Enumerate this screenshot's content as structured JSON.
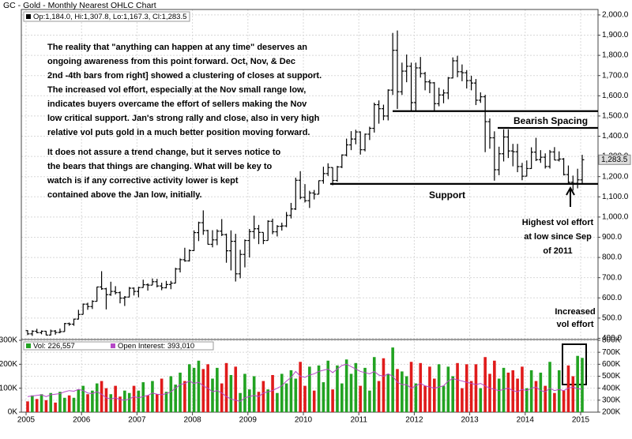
{
  "chart_data": {
    "type": "ohlc",
    "title": "GC - Gold - Monthly Nearest OHLC Chart",
    "header": "Op:1,184.0, Hi:1,307.8, Lo:1,167.3, Cl:1,283.5",
    "last_label": "1,283.5",
    "grid": true,
    "bar_color": "#000000",
    "up_color": "#22a322",
    "down_color": "#e01b1b",
    "categories": [
      "2005",
      null,
      null,
      null,
      null,
      null,
      null,
      null,
      null,
      null,
      null,
      null,
      "2006",
      null,
      null,
      null,
      null,
      null,
      null,
      null,
      null,
      null,
      null,
      null,
      "2007",
      null,
      null,
      null,
      null,
      null,
      null,
      null,
      null,
      null,
      null,
      null,
      "2008",
      null,
      null,
      null,
      null,
      null,
      null,
      null,
      null,
      null,
      null,
      null,
      "2009",
      null,
      null,
      null,
      null,
      null,
      null,
      null,
      null,
      null,
      null,
      null,
      "2010",
      null,
      null,
      null,
      null,
      null,
      null,
      null,
      null,
      null,
      null,
      null,
      "2011",
      null,
      null,
      null,
      null,
      null,
      null,
      null,
      null,
      null,
      null,
      null,
      "2012",
      null,
      null,
      null,
      null,
      null,
      null,
      null,
      null,
      null,
      null,
      null,
      "2013",
      null,
      null,
      null,
      null,
      null,
      null,
      null,
      null,
      null,
      null,
      null,
      "2014",
      null,
      null,
      null,
      null,
      null,
      null,
      null,
      null,
      null,
      null,
      null,
      "2015"
    ],
    "open": [
      438,
      422,
      435,
      428,
      435,
      416,
      436,
      429,
      433,
      473,
      470,
      495,
      518,
      569,
      557,
      583,
      654,
      645,
      616,
      632,
      626,
      599,
      604,
      648,
      632,
      651,
      665,
      663,
      680,
      659,
      650,
      666,
      673,
      743,
      789,
      783,
      834,
      923,
      972,
      933,
      865,
      887,
      930,
      913,
      833,
      880,
      719,
      815,
      884,
      928,
      942,
      924,
      884,
      979,
      927,
      954,
      956,
      1008,
      1040,
      1182,
      1097,
      1081,
      1119,
      1113,
      1180,
      1215,
      1245,
      1181,
      1248,
      1307,
      1357,
      1386,
      1421,
      1333,
      1410,
      1439,
      1556,
      1536,
      1500,
      1628,
      1825,
      1620,
      1722,
      1746,
      1566,
      1738,
      1710,
      1669,
      1664,
      1561,
      1604,
      1614,
      1688,
      1773,
      1719,
      1714,
      1675,
      1663,
      1578,
      1595,
      1472,
      1392,
      1234,
      1313,
      1396,
      1327,
      1323,
      1250,
      1202,
      1240,
      1321,
      1284,
      1296,
      1250,
      1322,
      1282,
      1287,
      1210,
      1172,
      1167,
      1184
    ],
    "high": [
      440,
      440,
      447,
      439,
      436,
      443,
      441,
      448,
      476,
      478,
      497,
      541,
      572,
      576,
      588,
      655,
      732,
      650,
      680,
      658,
      632,
      609,
      654,
      652,
      655,
      690,
      672,
      696,
      694,
      675,
      684,
      684,
      749,
      795,
      848,
      840,
      934,
      977,
      1033,
      937,
      935,
      939,
      990,
      918,
      934,
      917,
      838,
      889,
      941,
      1007,
      961,
      924,
      984,
      992,
      960,
      972,
      1025,
      1070,
      1195,
      1227,
      1163,
      1130,
      1134,
      1181,
      1249,
      1266,
      1246,
      1253,
      1310,
      1388,
      1425,
      1432,
      1424,
      1413,
      1447,
      1566,
      1577,
      1556,
      1632,
      1911,
      1923,
      1764,
      1804,
      1764,
      1764,
      1792,
      1718,
      1680,
      1668,
      1640,
      1631,
      1693,
      1790,
      1798,
      1755,
      1727,
      1699,
      1683,
      1617,
      1605,
      1488,
      1424,
      1348,
      1434,
      1434,
      1362,
      1362,
      1268,
      1280,
      1345,
      1392,
      1331,
      1315,
      1332,
      1346,
      1325,
      1292,
      1255,
      1205,
      1239,
      1307.8
    ],
    "low": [
      416,
      412,
      425,
      420,
      415,
      414,
      418,
      425,
      433,
      462,
      462,
      493,
      518,
      541,
      545,
      582,
      640,
      543,
      610,
      617,
      573,
      560,
      603,
      612,
      603,
      650,
      636,
      663,
      652,
      638,
      647,
      643,
      672,
      726,
      779,
      780,
      832,
      881,
      912,
      864,
      850,
      861,
      906,
      774,
      736,
      681,
      697,
      751,
      800,
      892,
      866,
      866,
      884,
      915,
      904,
      933,
      950,
      993,
      1035,
      1088,
      1072,
      1045,
      1087,
      1112,
      1165,
      1203,
      1157,
      1175,
      1242,
      1300,
      1331,
      1360,
      1309,
      1325,
      1381,
      1418,
      1462,
      1479,
      1478,
      1604,
      1535,
      1604,
      1667,
      1523,
      1526,
      1690,
      1627,
      1613,
      1527,
      1548,
      1563,
      1583,
      1686,
      1692,
      1672,
      1636,
      1627,
      1554,
      1565,
      1321,
      1338,
      1180,
      1207,
      1275,
      1292,
      1251,
      1222,
      1182,
      1202,
      1238,
      1277,
      1268,
      1240,
      1240,
      1281,
      1275,
      1206,
      1161,
      1131,
      1142,
      1167.3
    ],
    "close": [
      422,
      435,
      428,
      435,
      416,
      436,
      429,
      433,
      473,
      470,
      495,
      518,
      569,
      557,
      583,
      654,
      645,
      616,
      632,
      626,
      599,
      604,
      648,
      632,
      651,
      665,
      663,
      680,
      659,
      650,
      666,
      673,
      743,
      789,
      783,
      834,
      923,
      972,
      933,
      865,
      887,
      930,
      913,
      833,
      880,
      719,
      815,
      884,
      928,
      942,
      924,
      884,
      979,
      927,
      954,
      956,
      1008,
      1040,
      1182,
      1097,
      1081,
      1119,
      1113,
      1180,
      1215,
      1245,
      1181,
      1248,
      1307,
      1357,
      1386,
      1421,
      1333,
      1410,
      1439,
      1556,
      1536,
      1500,
      1628,
      1825,
      1620,
      1722,
      1746,
      1566,
      1738,
      1710,
      1669,
      1664,
      1561,
      1604,
      1614,
      1688,
      1773,
      1719,
      1714,
      1675,
      1663,
      1578,
      1595,
      1472,
      1392,
      1234,
      1313,
      1396,
      1327,
      1323,
      1250,
      1202,
      1240,
      1321,
      1284,
      1296,
      1250,
      1322,
      1282,
      1287,
      1210,
      1172,
      1167,
      1184,
      1283.5
    ],
    "ylim": [
      394,
      2027
    ],
    "yticks": [
      {
        "value": 400,
        "label": "400.0"
      },
      {
        "value": 500,
        "label": "500.0"
      },
      {
        "value": 600,
        "label": "600.0"
      },
      {
        "value": 700,
        "label": "700.0"
      },
      {
        "value": 800,
        "label": "800.0"
      },
      {
        "value": 900,
        "label": "900.0"
      },
      {
        "value": 1000,
        "label": "1,000.0"
      },
      {
        "value": 1100,
        "label": "1,100.0"
      },
      {
        "value": 1200,
        "label": "1,200.0"
      },
      {
        "value": 1300,
        "label": "1,300.0"
      },
      {
        "value": 1400,
        "label": "1,400.0"
      },
      {
        "value": 1500,
        "label": "1,500.0"
      },
      {
        "value": 1600,
        "label": "1,600.0"
      },
      {
        "value": 1700,
        "label": "1,700.0"
      },
      {
        "value": 1800,
        "label": "1,800.0"
      },
      {
        "value": 1900,
        "label": "1,900.0"
      },
      {
        "value": 2000,
        "label": "2,000.0"
      }
    ],
    "levels": [
      1524,
      1441,
      1164
    ],
    "annotations": {
      "commentary": [
        "The reality that \"anything can happen at any time\" deserves an",
        "ongoing awareness from this point forward.  Oct, Nov, & Dec",
        "2nd -4th bars from right] showed a clustering of closes at support.",
        "The increased vol effort, especially at the Nov small range low,",
        "indicates buyers overcame the effort of sellers making the Nov",
        "low critical support.  Jan's strong rally and close, also in very high",
        "relative vol puts gold in a much better position moving forward.",
        "It does not assure a trend change, but it serves notice to",
        "the bears that things are changing.  What will be key to",
        "watch is if any corrective activity lower is kept",
        "contained above the Jan low, initially."
      ],
      "bearish_spacing": "Bearish Spacing",
      "support": "Support",
      "highest_vol": [
        "Highest vol effort",
        "at low since Sep",
        "of 2011"
      ],
      "increased_vol": [
        "Increased",
        "vol effort"
      ]
    },
    "volume_panel": {
      "ylim": [
        0,
        300000
      ],
      "yticks": [
        {
          "value": 0,
          "label": "0K"
        },
        {
          "value": 100000,
          "label": "100K"
        },
        {
          "value": 200000,
          "label": "200K"
        },
        {
          "value": 300000,
          "label": "300K"
        }
      ],
      "y2lim": [
        200000,
        800000
      ],
      "y2ticks": [
        {
          "value": 200000,
          "label": "200K"
        },
        {
          "value": 300000,
          "label": "300K"
        },
        {
          "value": 400000,
          "label": "400K"
        },
        {
          "value": 500000,
          "label": "500K"
        },
        {
          "value": 600000,
          "label": "600K"
        },
        {
          "value": 700000,
          "label": "700K"
        },
        {
          "value": 800000,
          "label": "800K"
        }
      ],
      "series": [
        {
          "name": "Vol: 226,557",
          "color": "#22a322",
          "values": [
            45000,
            70000,
            55000,
            75000,
            50000,
            80000,
            40000,
            85000,
            60000,
            70000,
            60000,
            95000,
            110000,
            75000,
            90000,
            120000,
            130000,
            100000,
            75000,
            110000,
            65000,
            90000,
            80000,
            110000,
            90000,
            125000,
            70000,
            130000,
            75000,
            140000,
            85000,
            150000,
            115000,
            165000,
            130000,
            200000,
            185000,
            215000,
            180000,
            200000,
            140000,
            185000,
            120000,
            205000,
            155000,
            190000,
            80000,
            160000,
            95000,
            150000,
            85000,
            130000,
            95000,
            155000,
            80000,
            160000,
            120000,
            175000,
            140000,
            210000,
            110000,
            190000,
            90000,
            195000,
            125000,
            215000,
            95000,
            195000,
            120000,
            220000,
            160000,
            205000,
            110000,
            185000,
            90000,
            230000,
            130000,
            225000,
            160000,
            270000,
            180000,
            170000,
            150000,
            210000,
            120000,
            205000,
            110000,
            190000,
            140000,
            200000,
            110000,
            190000,
            150000,
            205000,
            100000,
            200000,
            130000,
            200000,
            100000,
            230000,
            160000,
            215000,
            140000,
            185000,
            165000,
            175000,
            140000,
            190000,
            100000,
            175000,
            130000,
            165000,
            110000,
            210000,
            80000,
            175000,
            90000,
            195000,
            150000,
            235000,
            226557
          ]
        },
        {
          "name": "Open Interest: 393,010",
          "color": "#b548c6",
          "axis": "y2",
          "values": [
            330000,
            335000,
            340000,
            345000,
            330000,
            345000,
            350000,
            355000,
            370000,
            380000,
            375000,
            390000,
            380000,
            360000,
            355000,
            370000,
            350000,
            320000,
            310000,
            320000,
            305000,
            300000,
            310000,
            330000,
            320000,
            330000,
            340000,
            360000,
            350000,
            345000,
            355000,
            370000,
            400000,
            430000,
            440000,
            460000,
            440000,
            450000,
            420000,
            400000,
            370000,
            380000,
            360000,
            330000,
            310000,
            300000,
            290000,
            320000,
            330000,
            340000,
            330000,
            360000,
            370000,
            380000,
            400000,
            420000,
            460000,
            490000,
            540000,
            500000,
            490000,
            510000,
            520000,
            540000,
            550000,
            560000,
            530000,
            560000,
            590000,
            600000,
            580000,
            560000,
            540000,
            530000,
            520000,
            540000,
            510000,
            500000,
            520000,
            500000,
            450000,
            430000,
            430000,
            400000,
            420000,
            440000,
            420000,
            410000,
            400000,
            410000,
            420000,
            460000,
            480000,
            470000,
            460000,
            450000,
            440000,
            430000,
            440000,
            420000,
            400000,
            390000,
            380000,
            390000,
            400000,
            380000,
            370000,
            390000,
            380000,
            400000,
            410000,
            380000,
            370000,
            400000,
            380000,
            390000,
            380000,
            400000,
            410000,
            395000,
            393010
          ]
        }
      ]
    }
  }
}
